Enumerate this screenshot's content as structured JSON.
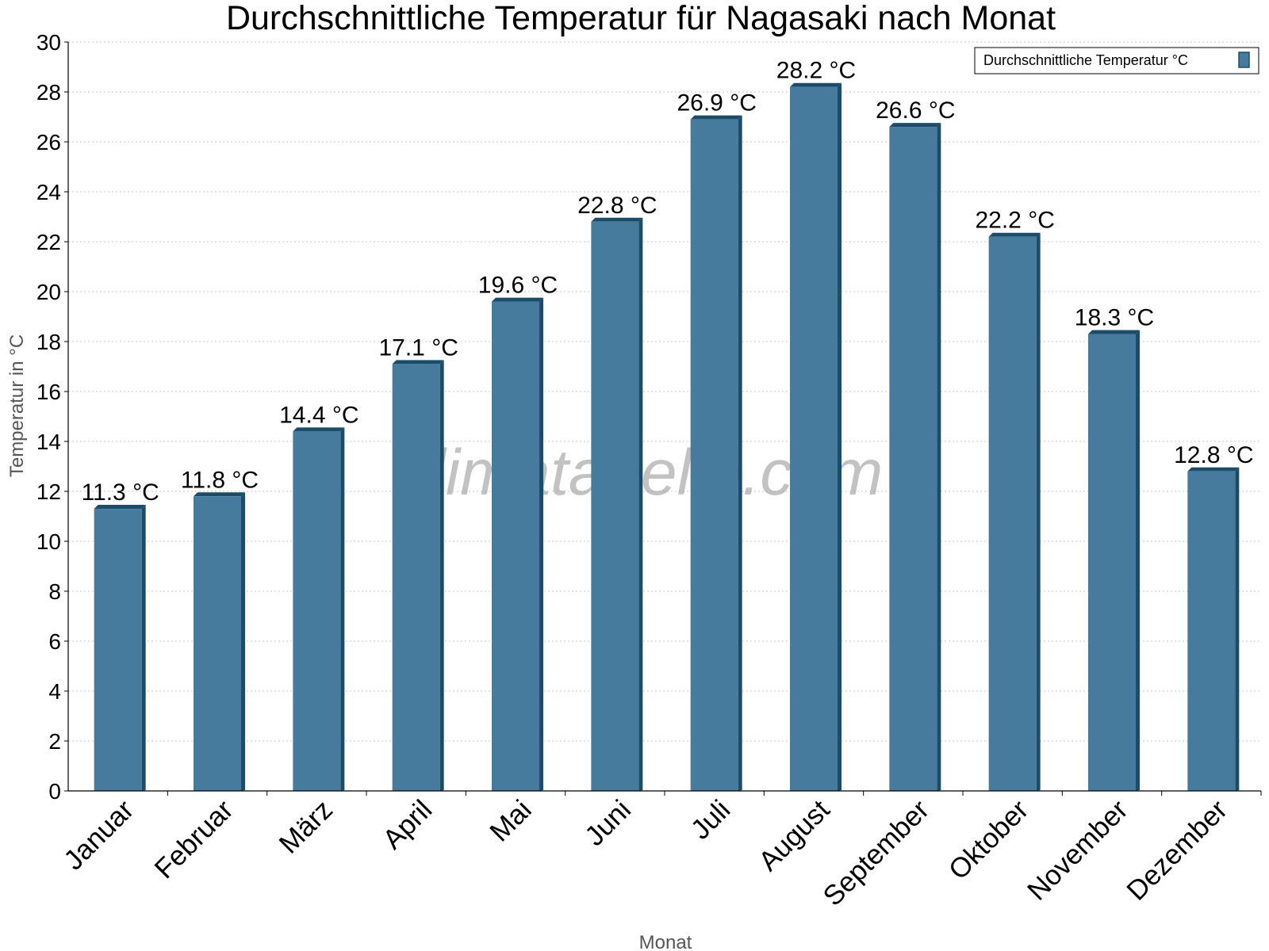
{
  "chart_data": {
    "type": "bar",
    "title": "Durchschnittliche Temperatur für Nagasaki nach Monat",
    "xlabel": "Monat",
    "ylabel": "Temperatur in °C",
    "categories": [
      "Januar",
      "Februar",
      "März",
      "April",
      "Mai",
      "Juni",
      "Juli",
      "August",
      "September",
      "Oktober",
      "November",
      "Dezember"
    ],
    "series": [
      {
        "name": "Durchschnittliche Temperatur °C",
        "values": [
          11.3,
          11.8,
          14.4,
          17.1,
          19.6,
          22.8,
          26.9,
          28.2,
          26.6,
          22.2,
          18.3,
          12.8
        ],
        "color": "#467b9d"
      }
    ],
    "value_labels": [
      "11.3 °C",
      "11.8 °C",
      "14.4 °C",
      "17.1 °C",
      "19.6 °C",
      "22.8 °C",
      "26.9 °C",
      "28.2 °C",
      "26.6 °C",
      "22.2 °C",
      "18.3 °C",
      "12.8 °C"
    ],
    "ylim": [
      0,
      30
    ],
    "yticks": [
      0,
      2,
      4,
      6,
      8,
      10,
      12,
      14,
      16,
      18,
      20,
      22,
      24,
      26,
      28,
      30
    ],
    "grid": "horizontal-dotted",
    "legend_position": "top-right",
    "watermark": "klimatabelle.com",
    "colors": {
      "bar": "#467b9d",
      "bar_side": "#1b4d6b",
      "grid": "#c8c8c8"
    }
  }
}
